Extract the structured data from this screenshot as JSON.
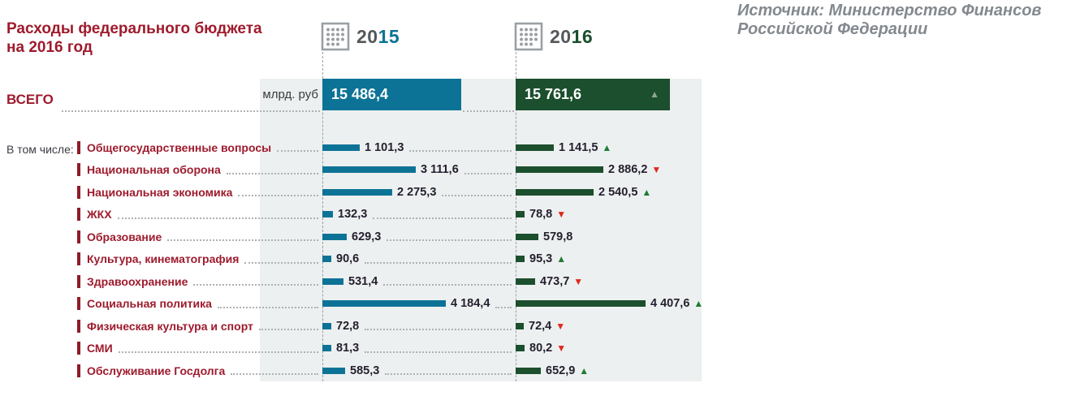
{
  "title": {
    "line1": "Расходы федерального бюджета",
    "line2": "на 2016 год"
  },
  "source": {
    "line1": "Источник: Министерство Финансов",
    "line2": "Российской Федерации"
  },
  "columns": {
    "y2015": {
      "prefix": "20",
      "suffix": "15",
      "color": "#0d7396"
    },
    "y2016": {
      "prefix": "20",
      "suffix": "16",
      "color": "#1b4f2d"
    }
  },
  "total": {
    "label": "ВСЕГО",
    "unit": "млрд. руб",
    "display_2015": "15 486,4",
    "display_2016": "15 761,6",
    "trend": "total_up"
  },
  "breakdown_label": "В том числе:",
  "trend_markers": {
    "up": {
      "glyph": "▲",
      "color": "#1d7c33"
    },
    "down": {
      "glyph": "▼",
      "color": "#e0261c"
    },
    "total_up": {
      "glyph": "▲",
      "color": "#8da695"
    }
  },
  "icons": {
    "calendar_grid": "calendar-grid-icon"
  },
  "colors": {
    "bar_2015": "#0d7396",
    "bar_2016": "#1b4f2d",
    "label_red": "#9e1b2d",
    "panel_gray": "#edf0f0",
    "up_green": "#1d7c33",
    "down_red": "#e0261c"
  },
  "chart_data": {
    "type": "bar",
    "title": "Расходы федерального бюджета на 2016 год",
    "unit": "млрд. руб",
    "legend_position": "top",
    "categories": [
      "Общегосударственные вопросы",
      "Национальная оборона",
      "Национальная экономика",
      "ЖКХ",
      "Образование",
      "Культура, кинематография",
      "Здравоохранение",
      "Социальная политика",
      "Физическая культура и спорт",
      "СМИ",
      "Обслуживание Госдолга"
    ],
    "series": [
      {
        "name": "2015",
        "values": [
          1101.3,
          3111.6,
          2275.3,
          132.3,
          629.3,
          90.6,
          531.4,
          4184.4,
          72.8,
          81.3,
          585.3
        ]
      },
      {
        "name": "2016",
        "values": [
          1141.5,
          2886.2,
          2540.5,
          78.8,
          579.8,
          95.3,
          473.7,
          4407.6,
          72.4,
          80.2,
          652.9
        ]
      }
    ],
    "total": {
      "label": "ВСЕГО",
      "v2015": 15486.4,
      "v2016": 15761.6
    },
    "rows": [
      {
        "label": "Общегосударственные вопросы",
        "v2015": 1101.3,
        "d2015": "1 101,3",
        "v2016": 1141.5,
        "d2016": "1 141,5",
        "trend": "up"
      },
      {
        "label": "Национальная оборона",
        "v2015": 3111.6,
        "d2015": "3 111,6",
        "v2016": 2886.2,
        "d2016": "2 886,2",
        "trend": "down"
      },
      {
        "label": "Национальная экономика",
        "v2015": 2275.3,
        "d2015": "2 275,3",
        "v2016": 2540.5,
        "d2016": "2 540,5",
        "trend": "up"
      },
      {
        "label": "ЖКХ",
        "v2015": 132.3,
        "d2015": "132,3",
        "v2016": 78.8,
        "d2016": "78,8",
        "trend": "down"
      },
      {
        "label": "Образование",
        "v2015": 629.3,
        "d2015": "629,3",
        "v2016": 579.8,
        "d2016": "579,8",
        "trend": "none"
      },
      {
        "label": "Культура, кинематография",
        "v2015": 90.6,
        "d2015": "90,6",
        "v2016": 95.3,
        "d2016": "95,3",
        "trend": "up"
      },
      {
        "label": "Здравоохранение",
        "v2015": 531.4,
        "d2015": "531,4",
        "v2016": 473.7,
        "d2016": "473,7",
        "trend": "down"
      },
      {
        "label": "Социальная политика",
        "v2015": 4184.4,
        "d2015": "4 184,4",
        "v2016": 4407.6,
        "d2016": "4 407,6",
        "trend": "up"
      },
      {
        "label": "Физическая культура и спорт",
        "v2015": 72.8,
        "d2015": "72,8",
        "v2016": 72.4,
        "d2016": "72,4",
        "trend": "down"
      },
      {
        "label": "СМИ",
        "v2015": 81.3,
        "d2015": "81,3",
        "v2016": 80.2,
        "d2016": "80,2",
        "trend": "down"
      },
      {
        "label": "Обслуживание Госдолга",
        "v2015": 585.3,
        "d2015": "585,3",
        "v2016": 652.9,
        "d2016": "652,9",
        "trend": "up"
      }
    ]
  }
}
